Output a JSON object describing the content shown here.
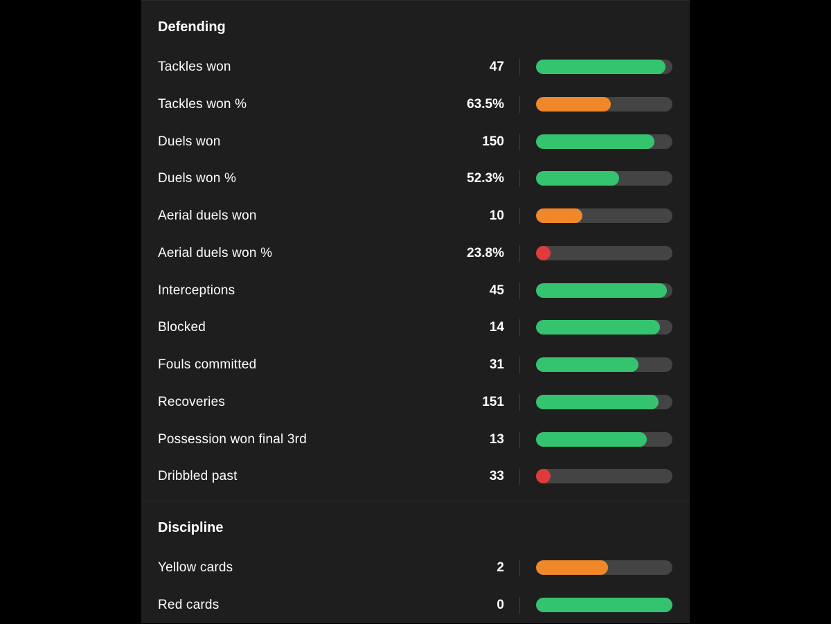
{
  "colors": {
    "good": "#34c46f",
    "average": "#f0882a",
    "poor": "#e03a3a",
    "track": "#444444"
  },
  "sections": [
    {
      "title": "Defending",
      "rows": [
        {
          "label": "Tackles won",
          "value": "47",
          "level": 0.95,
          "rating": "good"
        },
        {
          "label": "Tackles won %",
          "value": "63.5%",
          "level": 0.55,
          "rating": "average"
        },
        {
          "label": "Duels won",
          "value": "150",
          "level": 0.87,
          "rating": "good"
        },
        {
          "label": "Duels won %",
          "value": "52.3%",
          "level": 0.61,
          "rating": "good"
        },
        {
          "label": "Aerial duels won",
          "value": "10",
          "level": 0.34,
          "rating": "average"
        },
        {
          "label": "Aerial duels won %",
          "value": "23.8%",
          "level": 0.06,
          "rating": "poor"
        },
        {
          "label": "Interceptions",
          "value": "45",
          "level": 0.96,
          "rating": "good"
        },
        {
          "label": "Blocked",
          "value": "14",
          "level": 0.91,
          "rating": "good"
        },
        {
          "label": "Fouls committed",
          "value": "31",
          "level": 0.75,
          "rating": "good"
        },
        {
          "label": "Recoveries",
          "value": "151",
          "level": 0.9,
          "rating": "good"
        },
        {
          "label": "Possession won final 3rd",
          "value": "13",
          "level": 0.81,
          "rating": "good"
        },
        {
          "label": "Dribbled past",
          "value": "33",
          "level": 0.06,
          "rating": "poor"
        }
      ]
    },
    {
      "title": "Discipline",
      "rows": [
        {
          "label": "Yellow cards",
          "value": "2",
          "level": 0.53,
          "rating": "average"
        },
        {
          "label": "Red cards",
          "value": "0",
          "level": 1.0,
          "rating": "good"
        }
      ]
    }
  ]
}
